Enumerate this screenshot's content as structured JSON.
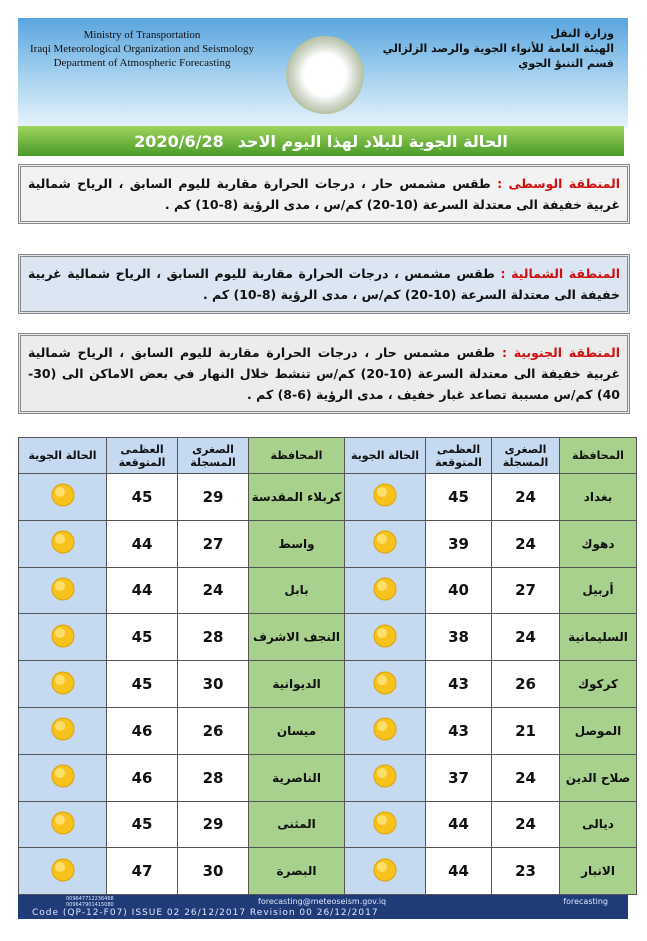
{
  "header": {
    "en": [
      "Ministry of Transportation",
      "Iraqi Meteorological Organization and Seismology",
      "Department of Atmospheric Forecasting"
    ],
    "ar": [
      "وزارة النقل",
      "الهيئة العامة للأنواء الجوية والرصد الزلزالي",
      "قسم التنبؤ الجوي"
    ]
  },
  "title": {
    "text": "الحالة الجوية للبلاد لهذا اليوم الاحد",
    "date": "2020/6/28"
  },
  "regions": [
    {
      "label": "المنطقة الوسطى :",
      "text": "طقس مشمس حار ، درجات الحرارة مقاربة لليوم السابق ، الرياح شمالية غربية خفيفة الى معتدلة السرعة (10-20) كم/س ، مدى الرؤية (8-10) كم ."
    },
    {
      "label": "المنطقة الشمالية :",
      "text": "طقس مشمس ، درجات الحرارة مقاربة لليوم السابق ، الرياح شمالية غربية خفيفة الى معتدلة السرعة (10-20) كم/س ، مدى الرؤية (8-10) كم ."
    },
    {
      "label": "المنطقة الجنوبية :",
      "text": "طقس مشمس حار ، درجات الحرارة مقاربة لليوم السابق ، الرياح شمالية غربية خفيفة الى معتدلة السرعة (10-20) كم/س تنشط خلال النهار في بعض الاماكن الى (30-40) كم/س مسببة تصاعد غبار خفيف ، مدى الرؤية (6-8) كم ."
    }
  ],
  "table": {
    "headers": [
      "المحافظة",
      "الصغرى المسجلة",
      "العظمى المتوقعة",
      "الحالة الجوية"
    ],
    "right": [
      {
        "city": "بغداد",
        "min": 24,
        "max": 45
      },
      {
        "city": "دهوك",
        "min": 24,
        "max": 39
      },
      {
        "city": "أربيل",
        "min": 27,
        "max": 40
      },
      {
        "city": "السليمانية",
        "min": 24,
        "max": 38
      },
      {
        "city": "كركوك",
        "min": 26,
        "max": 43
      },
      {
        "city": "الموصل",
        "min": 21,
        "max": 43
      },
      {
        "city": "صلاح الدين",
        "min": 24,
        "max": 37
      },
      {
        "city": "ديالى",
        "min": 24,
        "max": 44
      },
      {
        "city": "الانبار",
        "min": 23,
        "max": 44
      }
    ],
    "left": [
      {
        "city": "كربلاء المقدسة",
        "min": 29,
        "max": 45
      },
      {
        "city": "واسط",
        "min": 27,
        "max": 44
      },
      {
        "city": "بابل",
        "min": 24,
        "max": 44
      },
      {
        "city": "النجف الاشرف",
        "min": 28,
        "max": 45
      },
      {
        "city": "الديوانية",
        "min": 30,
        "max": 45
      },
      {
        "city": "ميسان",
        "min": 26,
        "max": 46
      },
      {
        "city": "الناصرية",
        "min": 28,
        "max": 46
      },
      {
        "city": "المثنى",
        "min": 29,
        "max": 45
      },
      {
        "city": "البصرة",
        "min": 30,
        "max": 47
      }
    ]
  },
  "footer": {
    "phones": [
      "009647712236468",
      "009647901415080"
    ],
    "email": "forecasting@meteoseism.gov.iq",
    "social": "forecasting",
    "code": "Code (QP-12-F07) ISSUE 02 26/12/2017 Revision 00 26/12/2017"
  }
}
